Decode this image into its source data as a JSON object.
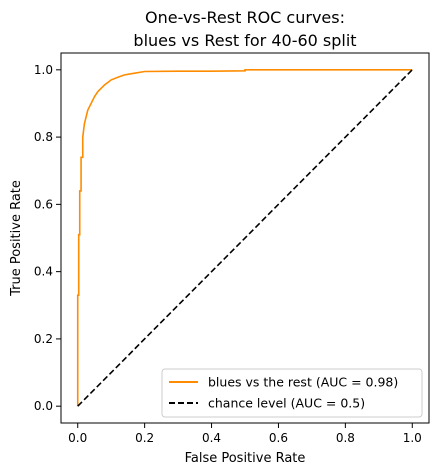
{
  "chart_data": {
    "type": "line",
    "title_line1": "One-vs-Rest ROC curves:",
    "title_line2": "blues vs Rest for 40-60 split",
    "xlabel": "False Positive Rate",
    "ylabel": "True Positive Rate",
    "xlim": [
      -0.05,
      1.05
    ],
    "ylim": [
      -0.05,
      1.05
    ],
    "xticks": [
      0.0,
      0.2,
      0.4,
      0.6,
      0.8,
      1.0
    ],
    "yticks": [
      0.0,
      0.2,
      0.4,
      0.6,
      0.8,
      1.0
    ],
    "xtick_labels": [
      "0.0",
      "0.2",
      "0.4",
      "0.6",
      "0.8",
      "1.0"
    ],
    "ytick_labels": [
      "0.0",
      "0.2",
      "0.4",
      "0.6",
      "0.8",
      "1.0"
    ],
    "grid": false,
    "legend_position": "lower-right",
    "series": [
      {
        "name": "blues vs the rest (AUC = 0.98)",
        "color": "#ff8c00",
        "style": "solid",
        "x": [
          0.0,
          0.0,
          0.003,
          0.003,
          0.006,
          0.006,
          0.01,
          0.01,
          0.015,
          0.015,
          0.02,
          0.025,
          0.03,
          0.04,
          0.05,
          0.06,
          0.07,
          0.08,
          0.1,
          0.12,
          0.14,
          0.17,
          0.2,
          0.3,
          0.4,
          0.5,
          0.5,
          0.7,
          1.0
        ],
        "y": [
          0.0,
          0.33,
          0.33,
          0.51,
          0.51,
          0.64,
          0.64,
          0.74,
          0.74,
          0.8,
          0.84,
          0.86,
          0.88,
          0.9,
          0.92,
          0.935,
          0.945,
          0.955,
          0.97,
          0.978,
          0.985,
          0.99,
          0.995,
          0.996,
          0.996,
          0.997,
          1.0,
          1.0,
          1.0
        ]
      },
      {
        "name": "chance level (AUC = 0.5)",
        "color": "#000000",
        "style": "dashed",
        "x": [
          0.0,
          1.0
        ],
        "y": [
          0.0,
          1.0
        ]
      }
    ]
  }
}
